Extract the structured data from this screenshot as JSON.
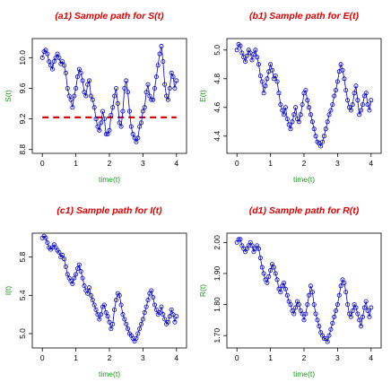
{
  "colors": {
    "title": "#e00000",
    "axis_label": "#1a9a1a",
    "series": "#0000cc",
    "reference_line": "#dd0000"
  },
  "chart_data": [
    {
      "type": "line",
      "title": "(a1) Sample path for S(t)",
      "xlabel": "time(t)",
      "ylabel": "S(t)",
      "xlim": [
        -0.3,
        4.3
      ],
      "ylim": [
        8.75,
        10.25
      ],
      "xticks": [
        "0",
        "1",
        "2",
        "3",
        "4"
      ],
      "yticks": [
        "8.8",
        "9.2",
        "9.6",
        "10.0"
      ],
      "marker": "open-circle",
      "reference_line": {
        "y": 9.22,
        "style": "dashed"
      },
      "series": [
        {
          "x": [
            0,
            0.05,
            0.1,
            0.15,
            0.2,
            0.25,
            0.3,
            0.35,
            0.4,
            0.45,
            0.5,
            0.55,
            0.6,
            0.65,
            0.7,
            0.75,
            0.8,
            0.85,
            0.9,
            0.95,
            1,
            1.05,
            1.1,
            1.15,
            1.2,
            1.25,
            1.3,
            1.35,
            1.4,
            1.45,
            1.5,
            1.55,
            1.6,
            1.65,
            1.7,
            1.75,
            1.8,
            1.85,
            1.9,
            1.95,
            2,
            2.05,
            2.1,
            2.15,
            2.2,
            2.25,
            2.3,
            2.35,
            2.4,
            2.45,
            2.5,
            2.55,
            2.6,
            2.65,
            2.7,
            2.75,
            2.8,
            2.85,
            2.9,
            2.95,
            3,
            3.05,
            3.1,
            3.15,
            3.2,
            3.25,
            3.3,
            3.35,
            3.4,
            3.45,
            3.5,
            3.55,
            3.6,
            3.65,
            3.7,
            3.75,
            3.8,
            3.85,
            3.9,
            3.95,
            4
          ],
          "y": [
            10.0,
            10.08,
            10.1,
            10.05,
            9.95,
            9.9,
            9.85,
            9.95,
            10.0,
            10.05,
            10.0,
            9.92,
            9.95,
            9.9,
            9.8,
            9.6,
            9.5,
            9.45,
            9.35,
            9.5,
            9.6,
            9.75,
            9.85,
            9.8,
            9.7,
            9.55,
            9.5,
            9.65,
            9.7,
            9.5,
            9.45,
            9.35,
            9.2,
            9.1,
            9.05,
            9.15,
            9.3,
            9.2,
            9.0,
            9.0,
            9.05,
            9.25,
            9.35,
            9.5,
            9.6,
            9.4,
            9.15,
            9.1,
            9.3,
            9.6,
            9.7,
            9.55,
            9.3,
            9.1,
            9.0,
            8.95,
            8.9,
            8.95,
            9.1,
            9.15,
            9.3,
            9.35,
            9.55,
            9.65,
            9.5,
            9.45,
            9.45,
            9.6,
            9.75,
            9.9,
            10.05,
            10.15,
            9.95,
            9.65,
            9.5,
            9.45,
            9.6,
            9.8,
            9.75,
            9.6,
            9.7
          ]
        }
      ]
    },
    {
      "type": "line",
      "title": "(b1) Sample path for E(t)",
      "xlabel": "time(t)",
      "ylabel": "E(t)",
      "xlim": [
        -0.3,
        4.3
      ],
      "ylim": [
        4.28,
        5.08
      ],
      "xticks": [
        "0",
        "1",
        "2",
        "3",
        "4"
      ],
      "yticks": [
        "4.4",
        "4.6",
        "4.8",
        "5.0"
      ],
      "marker": "open-circle",
      "series": [
        {
          "x": [
            0,
            0.05,
            0.1,
            0.15,
            0.2,
            0.25,
            0.3,
            0.35,
            0.4,
            0.45,
            0.5,
            0.55,
            0.6,
            0.65,
            0.7,
            0.75,
            0.8,
            0.85,
            0.9,
            0.95,
            1,
            1.05,
            1.1,
            1.15,
            1.2,
            1.25,
            1.3,
            1.35,
            1.4,
            1.45,
            1.5,
            1.55,
            1.6,
            1.65,
            1.7,
            1.75,
            1.8,
            1.85,
            1.9,
            1.95,
            2,
            2.05,
            2.1,
            2.15,
            2.2,
            2.25,
            2.3,
            2.35,
            2.4,
            2.45,
            2.5,
            2.55,
            2.6,
            2.65,
            2.7,
            2.75,
            2.8,
            2.85,
            2.9,
            2.95,
            3,
            3.05,
            3.1,
            3.15,
            3.2,
            3.25,
            3.3,
            3.35,
            3.4,
            3.45,
            3.5,
            3.55,
            3.6,
            3.65,
            3.7,
            3.75,
            3.8,
            3.85,
            3.9,
            3.95,
            4
          ],
          "y": [
            5.0,
            5.04,
            5.03,
            4.98,
            4.95,
            4.92,
            4.96,
            5.0,
            4.98,
            4.93,
            4.97,
            5.0,
            4.95,
            4.9,
            4.82,
            4.78,
            4.7,
            4.75,
            4.8,
            4.85,
            4.9,
            4.86,
            4.8,
            4.82,
            4.78,
            4.7,
            4.62,
            4.58,
            4.55,
            4.6,
            4.52,
            4.48,
            4.45,
            4.5,
            4.55,
            4.6,
            4.52,
            4.5,
            4.55,
            4.62,
            4.7,
            4.72,
            4.65,
            4.6,
            4.55,
            4.5,
            4.45,
            4.4,
            4.36,
            4.35,
            4.33,
            4.36,
            4.4,
            4.45,
            4.5,
            4.55,
            4.58,
            4.62,
            4.68,
            4.72,
            4.78,
            4.85,
            4.9,
            4.86,
            4.8,
            4.72,
            4.65,
            4.6,
            4.58,
            4.62,
            4.7,
            4.75,
            4.65,
            4.55,
            4.58,
            4.62,
            4.68,
            4.7,
            4.62,
            4.58,
            4.65
          ]
        }
      ]
    },
    {
      "type": "line",
      "title": "(c1) Sample path for I(t)",
      "xlabel": "time(t)",
      "ylabel": "I(t)",
      "xlim": [
        -0.3,
        4.3
      ],
      "ylim": [
        4.85,
        6.05
      ],
      "xticks": [
        "0",
        "1",
        "2",
        "3",
        "4"
      ],
      "yticks": [
        "5.0",
        "5.4",
        "5.8"
      ],
      "marker": "open-circle",
      "series": [
        {
          "x": [
            0,
            0.05,
            0.1,
            0.15,
            0.2,
            0.25,
            0.3,
            0.35,
            0.4,
            0.45,
            0.5,
            0.55,
            0.6,
            0.65,
            0.7,
            0.75,
            0.8,
            0.85,
            0.9,
            0.95,
            1,
            1.05,
            1.1,
            1.15,
            1.2,
            1.25,
            1.3,
            1.35,
            1.4,
            1.45,
            1.5,
            1.55,
            1.6,
            1.65,
            1.7,
            1.75,
            1.8,
            1.85,
            1.9,
            1.95,
            2,
            2.05,
            2.1,
            2.15,
            2.2,
            2.25,
            2.3,
            2.35,
            2.4,
            2.45,
            2.5,
            2.55,
            2.6,
            2.65,
            2.7,
            2.75,
            2.8,
            2.85,
            2.9,
            2.95,
            3,
            3.05,
            3.1,
            3.15,
            3.2,
            3.25,
            3.3,
            3.35,
            3.4,
            3.45,
            3.5,
            3.55,
            3.6,
            3.65,
            3.7,
            3.75,
            3.8,
            3.85,
            3.9,
            3.95,
            4
          ],
          "y": [
            6.0,
            6.02,
            6.0,
            5.95,
            5.9,
            5.88,
            5.9,
            5.93,
            5.9,
            5.87,
            5.85,
            5.8,
            5.82,
            5.78,
            5.7,
            5.62,
            5.58,
            5.55,
            5.52,
            5.58,
            5.62,
            5.68,
            5.72,
            5.65,
            5.58,
            5.5,
            5.45,
            5.42,
            5.48,
            5.4,
            5.35,
            5.3,
            5.25,
            5.2,
            5.15,
            5.2,
            5.28,
            5.3,
            5.22,
            5.18,
            5.12,
            5.05,
            5.1,
            5.25,
            5.35,
            5.42,
            5.4,
            5.3,
            5.2,
            5.15,
            5.1,
            5.05,
            5.0,
            4.98,
            4.95,
            4.92,
            4.95,
            5.0,
            5.05,
            5.1,
            5.15,
            5.22,
            5.28,
            5.35,
            5.42,
            5.45,
            5.38,
            5.3,
            5.25,
            5.2,
            5.22,
            5.28,
            5.2,
            5.15,
            5.1,
            5.12,
            5.18,
            5.25,
            5.2,
            5.12,
            5.18
          ]
        }
      ]
    },
    {
      "type": "line",
      "title": "(d1) Sample path for R(t)",
      "xlabel": "time(t)",
      "ylabel": "R(t)",
      "xlim": [
        -0.3,
        4.3
      ],
      "ylim": [
        1.66,
        2.03
      ],
      "xticks": [
        "0",
        "1",
        "2",
        "3",
        "4"
      ],
      "yticks": [
        "1.70",
        "1.80",
        "1.90",
        "2.00"
      ],
      "marker": "open-circle",
      "series": [
        {
          "x": [
            0,
            0.05,
            0.1,
            0.15,
            0.2,
            0.25,
            0.3,
            0.35,
            0.4,
            0.45,
            0.5,
            0.55,
            0.6,
            0.65,
            0.7,
            0.75,
            0.8,
            0.85,
            0.9,
            0.95,
            1,
            1.05,
            1.1,
            1.15,
            1.2,
            1.25,
            1.3,
            1.35,
            1.4,
            1.45,
            1.5,
            1.55,
            1.6,
            1.65,
            1.7,
            1.75,
            1.8,
            1.85,
            1.9,
            1.95,
            2,
            2.05,
            2.1,
            2.15,
            2.2,
            2.25,
            2.3,
            2.35,
            2.4,
            2.45,
            2.5,
            2.55,
            2.6,
            2.65,
            2.7,
            2.75,
            2.8,
            2.85,
            2.9,
            2.95,
            3,
            3.05,
            3.1,
            3.15,
            3.2,
            3.25,
            3.3,
            3.35,
            3.4,
            3.45,
            3.5,
            3.55,
            3.6,
            3.65,
            3.7,
            3.75,
            3.8,
            3.85,
            3.9,
            3.95,
            4
          ],
          "y": [
            2.0,
            2.01,
            2.01,
            1.99,
            1.98,
            1.97,
            1.98,
            1.99,
            2.0,
            1.99,
            1.97,
            1.98,
            1.99,
            1.98,
            1.95,
            1.92,
            1.9,
            1.88,
            1.87,
            1.89,
            1.91,
            1.93,
            1.92,
            1.9,
            1.88,
            1.85,
            1.84,
            1.86,
            1.87,
            1.85,
            1.83,
            1.81,
            1.8,
            1.78,
            1.77,
            1.79,
            1.81,
            1.8,
            1.78,
            1.77,
            1.75,
            1.77,
            1.8,
            1.83,
            1.86,
            1.84,
            1.8,
            1.77,
            1.75,
            1.73,
            1.71,
            1.7,
            1.69,
            1.69,
            1.68,
            1.7,
            1.72,
            1.74,
            1.76,
            1.78,
            1.8,
            1.83,
            1.86,
            1.88,
            1.87,
            1.84,
            1.8,
            1.77,
            1.76,
            1.78,
            1.8,
            1.79,
            1.77,
            1.75,
            1.73,
            1.76,
            1.79,
            1.81,
            1.78,
            1.76,
            1.79
          ]
        }
      ]
    }
  ]
}
